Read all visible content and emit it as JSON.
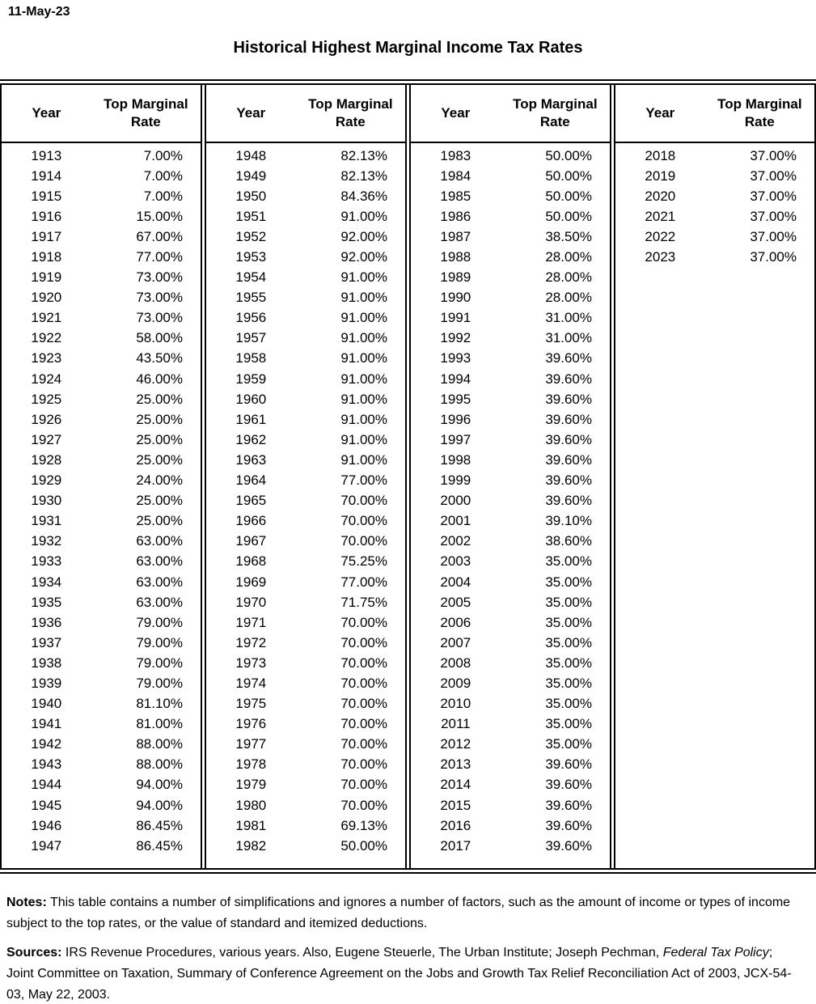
{
  "page": {
    "date": "11-May-23",
    "title": "Historical Highest Marginal Income Tax Rates"
  },
  "table": {
    "col_headers": {
      "year": "Year",
      "rate": "Top Marginal Rate"
    },
    "groups": [
      {
        "rows": [
          {
            "year": "1913",
            "rate": "7.00%"
          },
          {
            "year": "1914",
            "rate": "7.00%"
          },
          {
            "year": "1915",
            "rate": "7.00%"
          },
          {
            "year": "1916",
            "rate": "15.00%"
          },
          {
            "year": "1917",
            "rate": "67.00%"
          },
          {
            "year": "1918",
            "rate": "77.00%"
          },
          {
            "year": "1919",
            "rate": "73.00%"
          },
          {
            "year": "1920",
            "rate": "73.00%"
          },
          {
            "year": "1921",
            "rate": "73.00%"
          },
          {
            "year": "1922",
            "rate": "58.00%"
          },
          {
            "year": "1923",
            "rate": "43.50%"
          },
          {
            "year": "1924",
            "rate": "46.00%"
          },
          {
            "year": "1925",
            "rate": "25.00%"
          },
          {
            "year": "1926",
            "rate": "25.00%"
          },
          {
            "year": "1927",
            "rate": "25.00%"
          },
          {
            "year": "1928",
            "rate": "25.00%"
          },
          {
            "year": "1929",
            "rate": "24.00%"
          },
          {
            "year": "1930",
            "rate": "25.00%"
          },
          {
            "year": "1931",
            "rate": "25.00%"
          },
          {
            "year": "1932",
            "rate": "63.00%"
          },
          {
            "year": "1933",
            "rate": "63.00%"
          },
          {
            "year": "1934",
            "rate": "63.00%"
          },
          {
            "year": "1935",
            "rate": "63.00%"
          },
          {
            "year": "1936",
            "rate": "79.00%"
          },
          {
            "year": "1937",
            "rate": "79.00%"
          },
          {
            "year": "1938",
            "rate": "79.00%"
          },
          {
            "year": "1939",
            "rate": "79.00%"
          },
          {
            "year": "1940",
            "rate": "81.10%"
          },
          {
            "year": "1941",
            "rate": "81.00%"
          },
          {
            "year": "1942",
            "rate": "88.00%"
          },
          {
            "year": "1943",
            "rate": "88.00%"
          },
          {
            "year": "1944",
            "rate": "94.00%"
          },
          {
            "year": "1945",
            "rate": "94.00%"
          },
          {
            "year": "1946",
            "rate": "86.45%"
          },
          {
            "year": "1947",
            "rate": "86.45%"
          }
        ]
      },
      {
        "rows": [
          {
            "year": "1948",
            "rate": "82.13%"
          },
          {
            "year": "1949",
            "rate": "82.13%"
          },
          {
            "year": "1950",
            "rate": "84.36%"
          },
          {
            "year": "1951",
            "rate": "91.00%"
          },
          {
            "year": "1952",
            "rate": "92.00%"
          },
          {
            "year": "1953",
            "rate": "92.00%"
          },
          {
            "year": "1954",
            "rate": "91.00%"
          },
          {
            "year": "1955",
            "rate": "91.00%"
          },
          {
            "year": "1956",
            "rate": "91.00%"
          },
          {
            "year": "1957",
            "rate": "91.00%"
          },
          {
            "year": "1958",
            "rate": "91.00%"
          },
          {
            "year": "1959",
            "rate": "91.00%"
          },
          {
            "year": "1960",
            "rate": "91.00%"
          },
          {
            "year": "1961",
            "rate": "91.00%"
          },
          {
            "year": "1962",
            "rate": "91.00%"
          },
          {
            "year": "1963",
            "rate": "91.00%"
          },
          {
            "year": "1964",
            "rate": "77.00%"
          },
          {
            "year": "1965",
            "rate": "70.00%"
          },
          {
            "year": "1966",
            "rate": "70.00%"
          },
          {
            "year": "1967",
            "rate": "70.00%"
          },
          {
            "year": "1968",
            "rate": "75.25%"
          },
          {
            "year": "1969",
            "rate": "77.00%"
          },
          {
            "year": "1970",
            "rate": "71.75%"
          },
          {
            "year": "1971",
            "rate": "70.00%"
          },
          {
            "year": "1972",
            "rate": "70.00%"
          },
          {
            "year": "1973",
            "rate": "70.00%"
          },
          {
            "year": "1974",
            "rate": "70.00%"
          },
          {
            "year": "1975",
            "rate": "70.00%"
          },
          {
            "year": "1976",
            "rate": "70.00%"
          },
          {
            "year": "1977",
            "rate": "70.00%"
          },
          {
            "year": "1978",
            "rate": "70.00%"
          },
          {
            "year": "1979",
            "rate": "70.00%"
          },
          {
            "year": "1980",
            "rate": "70.00%"
          },
          {
            "year": "1981",
            "rate": "69.13%"
          },
          {
            "year": "1982",
            "rate": "50.00%"
          }
        ]
      },
      {
        "rows": [
          {
            "year": "1983",
            "rate": "50.00%"
          },
          {
            "year": "1984",
            "rate": "50.00%"
          },
          {
            "year": "1985",
            "rate": "50.00%"
          },
          {
            "year": "1986",
            "rate": "50.00%"
          },
          {
            "year": "1987",
            "rate": "38.50%"
          },
          {
            "year": "1988",
            "rate": "28.00%"
          },
          {
            "year": "1989",
            "rate": "28.00%"
          },
          {
            "year": "1990",
            "rate": "28.00%"
          },
          {
            "year": "1991",
            "rate": "31.00%"
          },
          {
            "year": "1992",
            "rate": "31.00%"
          },
          {
            "year": "1993",
            "rate": "39.60%"
          },
          {
            "year": "1994",
            "rate": "39.60%"
          },
          {
            "year": "1995",
            "rate": "39.60%"
          },
          {
            "year": "1996",
            "rate": "39.60%"
          },
          {
            "year": "1997",
            "rate": "39.60%"
          },
          {
            "year": "1998",
            "rate": "39.60%"
          },
          {
            "year": "1999",
            "rate": "39.60%"
          },
          {
            "year": "2000",
            "rate": "39.60%"
          },
          {
            "year": "2001",
            "rate": "39.10%"
          },
          {
            "year": "2002",
            "rate": "38.60%"
          },
          {
            "year": "2003",
            "rate": "35.00%"
          },
          {
            "year": "2004",
            "rate": "35.00%"
          },
          {
            "year": "2005",
            "rate": "35.00%"
          },
          {
            "year": "2006",
            "rate": "35.00%"
          },
          {
            "year": "2007",
            "rate": "35.00%"
          },
          {
            "year": "2008",
            "rate": "35.00%"
          },
          {
            "year": "2009",
            "rate": "35.00%"
          },
          {
            "year": "2010",
            "rate": "35.00%"
          },
          {
            "year": "2011",
            "rate": "35.00%"
          },
          {
            "year": "2012",
            "rate": "35.00%"
          },
          {
            "year": "2013",
            "rate": "39.60%"
          },
          {
            "year": "2014",
            "rate": "39.60%"
          },
          {
            "year": "2015",
            "rate": "39.60%"
          },
          {
            "year": "2016",
            "rate": "39.60%"
          },
          {
            "year": "2017",
            "rate": "39.60%"
          }
        ]
      },
      {
        "rows": [
          {
            "year": "2018",
            "rate": "37.00%"
          },
          {
            "year": "2019",
            "rate": "37.00%"
          },
          {
            "year": "2020",
            "rate": "37.00%"
          },
          {
            "year": "2021",
            "rate": "37.00%"
          },
          {
            "year": "2022",
            "rate": "37.00%"
          },
          {
            "year": "2023",
            "rate": "37.00%"
          }
        ]
      }
    ]
  },
  "notes": {
    "label": "Notes:",
    "text": " This table contains a number of simplifications and ignores a number of factors, such as the amount of income or types of income subject to the top rates, or the value of standard and itemized deductions."
  },
  "sources": {
    "label": "Sources:",
    "text_before_italic": " IRS Revenue Procedures, various years. Also, Eugene Steuerle, The Urban Institute; Joseph Pechman, ",
    "italic": "Federal Tax Policy",
    "text_after_italic": "; Joint Committee on Taxation, Summary of Conference Agreement on the Jobs and Growth Tax Relief Reconciliation Act of 2003, JCX-54-03, May 22, 2003."
  }
}
